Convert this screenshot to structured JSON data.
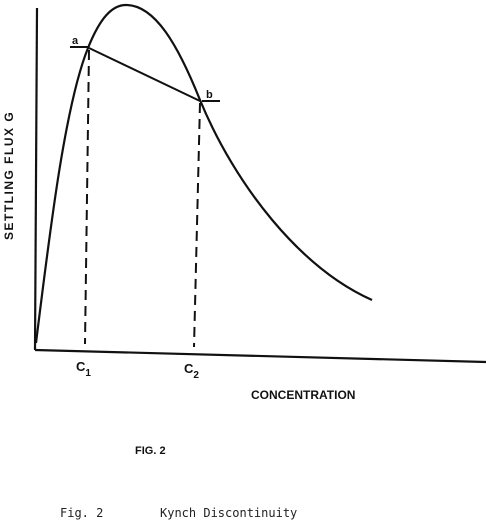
{
  "figure": {
    "y_axis_label": "SETTLING FLUX G",
    "x_axis_label": "CONCENTRATION",
    "tick_c1_base": "C",
    "tick_c1_sub": "1",
    "tick_c2_base": "C",
    "tick_c2_sub": "2",
    "point_a_label": "a",
    "point_b_label": "b",
    "fig_label": "FIG. 2",
    "caption_prefix": "Fig. 2",
    "caption_title": "Kynch Discontinuity"
  }
}
